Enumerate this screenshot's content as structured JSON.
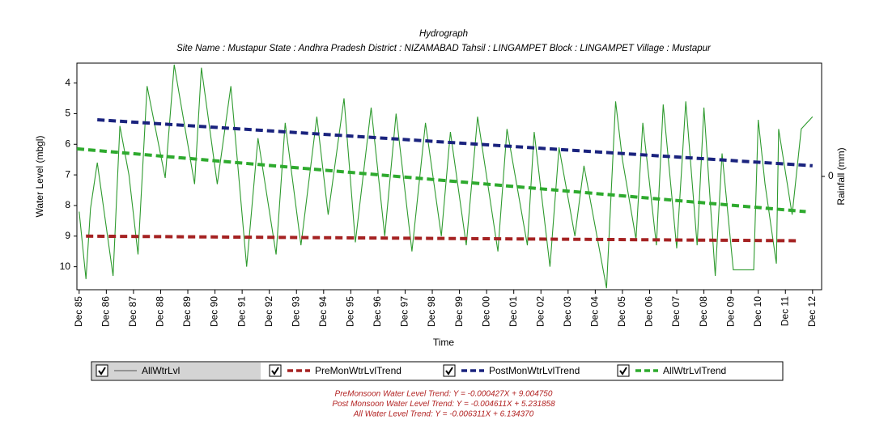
{
  "chart_data": {
    "type": "line",
    "title": "Hydrograph",
    "subtitle": "Site Name : Mustapur  State : Andhra Pradesh District : NIZAMABAD  Tahsil : LINGAMPET  Block : LINGAMPET Village : Mustapur",
    "x_label": "Time",
    "y_label": "Water Level (mbgl)",
    "y2_label": "Rainfall (mm)",
    "y_inverted": true,
    "ylim": [
      3.35,
      10.75
    ],
    "yticks": [
      4,
      5,
      6,
      7,
      8,
      9,
      10
    ],
    "y2lim": [
      -1,
      1
    ],
    "y2ticks": [
      0
    ],
    "xlim": [
      "1985-11",
      "2013-04"
    ],
    "xticks": [
      {
        "value": "1985-12",
        "label": "Dec 85"
      },
      {
        "value": "1986-12",
        "label": "Dec 86"
      },
      {
        "value": "1987-12",
        "label": "Dec 87"
      },
      {
        "value": "1988-12",
        "label": "Dec 88"
      },
      {
        "value": "1989-12",
        "label": "Dec 89"
      },
      {
        "value": "1990-12",
        "label": "Dec 90"
      },
      {
        "value": "1991-12",
        "label": "Dec 91"
      },
      {
        "value": "1992-12",
        "label": "Dec 92"
      },
      {
        "value": "1993-12",
        "label": "Dec 93"
      },
      {
        "value": "1994-12",
        "label": "Dec 94"
      },
      {
        "value": "1995-12",
        "label": "Dec 95"
      },
      {
        "value": "1996-12",
        "label": "Dec 96"
      },
      {
        "value": "1997-12",
        "label": "Dec 97"
      },
      {
        "value": "1998-12",
        "label": "Dec 98"
      },
      {
        "value": "1999-12",
        "label": "Dec 99"
      },
      {
        "value": "2000-12",
        "label": "Dec 00"
      },
      {
        "value": "2001-12",
        "label": "Dec 01"
      },
      {
        "value": "2002-12",
        "label": "Dec 02"
      },
      {
        "value": "2003-12",
        "label": "Dec 03"
      },
      {
        "value": "2004-12",
        "label": "Dec 04"
      },
      {
        "value": "2005-12",
        "label": "Dec 05"
      },
      {
        "value": "2006-12",
        "label": "Dec 06"
      },
      {
        "value": "2007-12",
        "label": "Dec 07"
      },
      {
        "value": "2008-12",
        "label": "Dec 08"
      },
      {
        "value": "2009-12",
        "label": "Dec 09"
      },
      {
        "value": "2010-12",
        "label": "Dec 10"
      },
      {
        "value": "2011-12",
        "label": "Dec 11"
      },
      {
        "value": "2012-12",
        "label": "Dec 12"
      }
    ],
    "series": [
      {
        "name": "AllWtrLvl",
        "color": "#2e9a2e",
        "style": "solid",
        "x": [
          "1985-12",
          "1986-03",
          "1986-05",
          "1986-08",
          "1987-03",
          "1987-06",
          "1987-10",
          "1988-02",
          "1988-06",
          "1989-02",
          "1989-06",
          "1990-03",
          "1990-06",
          "1991-01",
          "1991-07",
          "1992-02",
          "1992-07",
          "1993-03",
          "1993-07",
          "1994-02",
          "1994-09",
          "1995-02",
          "1995-09",
          "1996-02",
          "1996-09",
          "1997-03",
          "1997-08",
          "1998-03",
          "1998-09",
          "1999-04",
          "1999-08",
          "2000-03",
          "2000-08",
          "2001-05",
          "2001-09",
          "2002-06",
          "2002-09",
          "2003-04",
          "2003-08",
          "2004-03",
          "2004-07",
          "2005-05",
          "2005-09",
          "2005-12",
          "2006-06",
          "2006-09",
          "2007-03",
          "2007-06",
          "2007-12",
          "2008-04",
          "2008-09",
          "2008-12",
          "2009-05",
          "2009-08",
          "2010-01",
          "2010-10",
          "2010-12",
          "2011-03",
          "2011-08",
          "2011-09",
          "2012-03",
          "2012-07",
          "2012-12"
        ],
        "values": [
          8.2,
          10.4,
          8.1,
          6.6,
          10.3,
          5.4,
          7.0,
          9.6,
          4.1,
          7.1,
          3.4,
          7.3,
          3.5,
          7.3,
          4.1,
          10.0,
          5.8,
          9.6,
          5.3,
          9.3,
          5.1,
          8.3,
          4.5,
          9.2,
          4.8,
          9.0,
          5.0,
          9.5,
          5.3,
          9.0,
          5.6,
          9.3,
          5.1,
          9.5,
          5.5,
          9.3,
          5.6,
          10.0,
          6.1,
          9.0,
          6.7,
          10.7,
          4.6,
          6.5,
          9.1,
          5.3,
          9.3,
          4.7,
          9.4,
          4.6,
          9.3,
          4.8,
          10.3,
          6.3,
          10.1,
          10.1,
          5.2,
          7.3,
          9.9,
          5.5,
          8.3,
          5.5,
          5.1
        ]
      },
      {
        "name": "PreMonWtrLvlTrend",
        "color": "#a52222",
        "style": "dashed",
        "x": [
          "1986-03",
          "2012-06"
        ],
        "values": [
          9.0,
          9.15
        ]
      },
      {
        "name": "PostMonWtrLvlTrend",
        "color": "#1a237e",
        "style": "dashed",
        "x": [
          "1986-08",
          "2012-12"
        ],
        "values": [
          5.2,
          6.7
        ]
      },
      {
        "name": "AllWtrLvlTrend",
        "color": "#2eaa2e",
        "style": "dashed",
        "x": [
          "1985-11",
          "2012-09"
        ],
        "values": [
          6.15,
          8.2
        ]
      }
    ],
    "annotations": [
      "PreMonsoon Water Level Trend: Y = -0.000427X + 9.004750",
      "Post Monsoon Water Level Trend: Y = -0.004611X + 5.231858",
      "All Water Level Trend: Y = -0.006311X + 6.134370"
    ]
  }
}
